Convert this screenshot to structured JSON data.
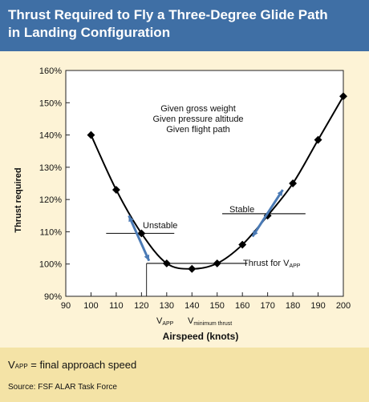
{
  "title": {
    "line1": "Thrust Required to Fly a Three-Degree Glide Path",
    "line2": "in Landing Configuration"
  },
  "colors": {
    "header_bg": "#3f6fa5",
    "arrow": "#4a7ab5",
    "footer_bg": "#f4e3a6"
  },
  "chart_data": {
    "type": "line",
    "x": [
      100,
      110,
      120,
      130,
      140,
      150,
      160,
      170,
      180,
      190,
      200
    ],
    "series": [
      {
        "values": [
          140,
          123,
          109.5,
          100.2,
          98.5,
          100.2,
          106,
          115,
          125,
          138.5,
          152
        ]
      }
    ],
    "xlabel": "Airspeed (knots)",
    "ylabel": "Thrust required",
    "xlim": [
      90,
      200
    ],
    "ylim": [
      90,
      160
    ],
    "x_ticks": [
      "90",
      "100",
      "110",
      "120",
      "130",
      "140",
      "150",
      "160",
      "170",
      "180",
      "190",
      "200"
    ],
    "y_ticks": [
      "90%",
      "100%",
      "110%",
      "120%",
      "130%",
      "140%",
      "150%",
      "160%"
    ],
    "grid": false,
    "annotations": {
      "given": [
        "Given gross weight",
        "Given pressure altitude",
        "Given flight path"
      ],
      "unstable": "Unstable",
      "stable": "Stable",
      "thrust_for": "Thrust for V",
      "thrust_for_sub": "APP",
      "vapp": "V",
      "vapp_sub": "APP",
      "vmin": "V",
      "vmin_sub": "minimum thrust"
    }
  },
  "footnote": {
    "text": "V",
    "sub": "APP",
    "rest": " = final approach speed"
  },
  "source": "Source: FSF ALAR Task Force"
}
